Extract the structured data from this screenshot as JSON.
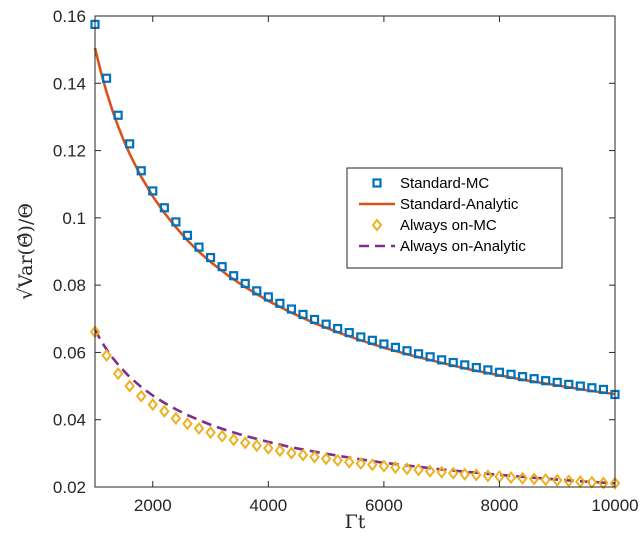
{
  "chart_data": {
    "type": "line",
    "xlabel": "Γt",
    "ylabel": "√Var(Θ̂)/Θ",
    "xlim": [
      1000,
      10000
    ],
    "ylim": [
      0.02,
      0.16
    ],
    "x_ticks": [
      2000,
      4000,
      6000,
      8000,
      10000
    ],
    "x_tick_labels": [
      "2000",
      "4000",
      "6000",
      "8000",
      "10000"
    ],
    "y_ticks": [
      0.02,
      0.04,
      0.06,
      0.08,
      0.1,
      0.12,
      0.14,
      0.16
    ],
    "y_tick_labels": [
      "0.02",
      "0.04",
      "0.06",
      "0.08",
      "0.1",
      "0.12",
      "0.14",
      "0.16"
    ],
    "grid": false,
    "legend_position": "center-right",
    "series": [
      {
        "name": "Standard-MC",
        "kind": "markers",
        "marker": "square",
        "color": "#0072BD",
        "x": [
          1000,
          1200,
          1400,
          1600,
          1800,
          2000,
          2200,
          2400,
          2600,
          2800,
          3000,
          3200,
          3400,
          3600,
          3800,
          4000,
          4200,
          4400,
          4600,
          4800,
          5000,
          5200,
          5400,
          5600,
          5800,
          6000,
          6200,
          6400,
          6600,
          6800,
          7000,
          7200,
          7400,
          7600,
          7800,
          8000,
          8200,
          8400,
          8600,
          8800,
          9000,
          9200,
          9400,
          9600,
          9800,
          10000
        ],
        "values": [
          0.1575,
          0.1415,
          0.1305,
          0.122,
          0.114,
          0.108,
          0.103,
          0.0988,
          0.0948,
          0.0913,
          0.0882,
          0.0855,
          0.0828,
          0.0805,
          0.0783,
          0.0765,
          0.0746,
          0.0729,
          0.0713,
          0.0698,
          0.0684,
          0.0671,
          0.0659,
          0.0646,
          0.0636,
          0.0625,
          0.0615,
          0.0605,
          0.0596,
          0.0587,
          0.0578,
          0.057,
          0.0563,
          0.0555,
          0.0548,
          0.0541,
          0.0535,
          0.0528,
          0.0522,
          0.0516,
          0.0511,
          0.0505,
          0.05,
          0.0495,
          0.049,
          0.0475
        ]
      },
      {
        "name": "Standard-Analytic",
        "kind": "line",
        "dash": "solid",
        "color": "#D95319",
        "x": [
          1000,
          1100,
          1200,
          1300,
          1400,
          1500,
          1600,
          1800,
          2000,
          2200,
          2400,
          2600,
          2800,
          3000,
          3300,
          3600,
          4000,
          4400,
          4800,
          5200,
          5600,
          6000,
          6500,
          7000,
          7500,
          8000,
          8500,
          9000,
          9500,
          10000
        ],
        "values": [
          0.1505,
          0.1435,
          0.1374,
          0.132,
          0.1272,
          0.1229,
          0.119,
          0.1122,
          0.1064,
          0.1015,
          0.0972,
          0.0933,
          0.0899,
          0.0869,
          0.0829,
          0.0794,
          0.0753,
          0.0718,
          0.0687,
          0.066,
          0.0636,
          0.0614,
          0.059,
          0.0569,
          0.0549,
          0.0532,
          0.0516,
          0.0502,
          0.0488,
          0.0476
        ]
      },
      {
        "name": "Always on-MC",
        "kind": "markers",
        "marker": "diamond",
        "color": "#EDB120",
        "x": [
          1000,
          1200,
          1400,
          1600,
          1800,
          2000,
          2200,
          2400,
          2600,
          2800,
          3000,
          3200,
          3400,
          3600,
          3800,
          4000,
          4200,
          4400,
          4600,
          4800,
          5000,
          5200,
          5400,
          5600,
          5800,
          6000,
          6200,
          6400,
          6600,
          6800,
          7000,
          7200,
          7400,
          7600,
          7800,
          8000,
          8200,
          8400,
          8600,
          8800,
          9000,
          9200,
          9400,
          9600,
          9800,
          10000
        ],
        "values": [
          0.0661,
          0.0591,
          0.0537,
          0.05,
          0.047,
          0.0445,
          0.0425,
          0.0404,
          0.0388,
          0.0374,
          0.0362,
          0.0351,
          0.034,
          0.0331,
          0.0323,
          0.0315,
          0.0308,
          0.0301,
          0.0295,
          0.0289,
          0.0284,
          0.0279,
          0.0274,
          0.027,
          0.0266,
          0.0262,
          0.0258,
          0.0254,
          0.0251,
          0.0247,
          0.0244,
          0.0241,
          0.0238,
          0.0236,
          0.0233,
          0.0231,
          0.0228,
          0.0226,
          0.0224,
          0.0222,
          0.022,
          0.0218,
          0.0216,
          0.0214,
          0.0212,
          0.0211
        ]
      },
      {
        "name": "Always on-Analytic",
        "kind": "line",
        "dash": "dashed",
        "color": "#7E2F8E",
        "x": [
          1000,
          1100,
          1200,
          1300,
          1400,
          1500,
          1600,
          1800,
          2000,
          2200,
          2400,
          2600,
          2800,
          3000,
          3300,
          3600,
          4000,
          4400,
          4800,
          5200,
          5600,
          6000,
          6500,
          7000,
          7500,
          8000,
          8500,
          9000,
          9500,
          10000
        ],
        "values": [
          0.0667,
          0.0636,
          0.0609,
          0.0585,
          0.0564,
          0.0545,
          0.0527,
          0.0497,
          0.0472,
          0.045,
          0.0431,
          0.0414,
          0.0399,
          0.0385,
          0.0367,
          0.0352,
          0.0334,
          0.0318,
          0.0305,
          0.0293,
          0.0282,
          0.0272,
          0.0262,
          0.0252,
          0.0244,
          0.0236,
          0.0229,
          0.0222,
          0.0216,
          0.0211
        ]
      }
    ]
  }
}
